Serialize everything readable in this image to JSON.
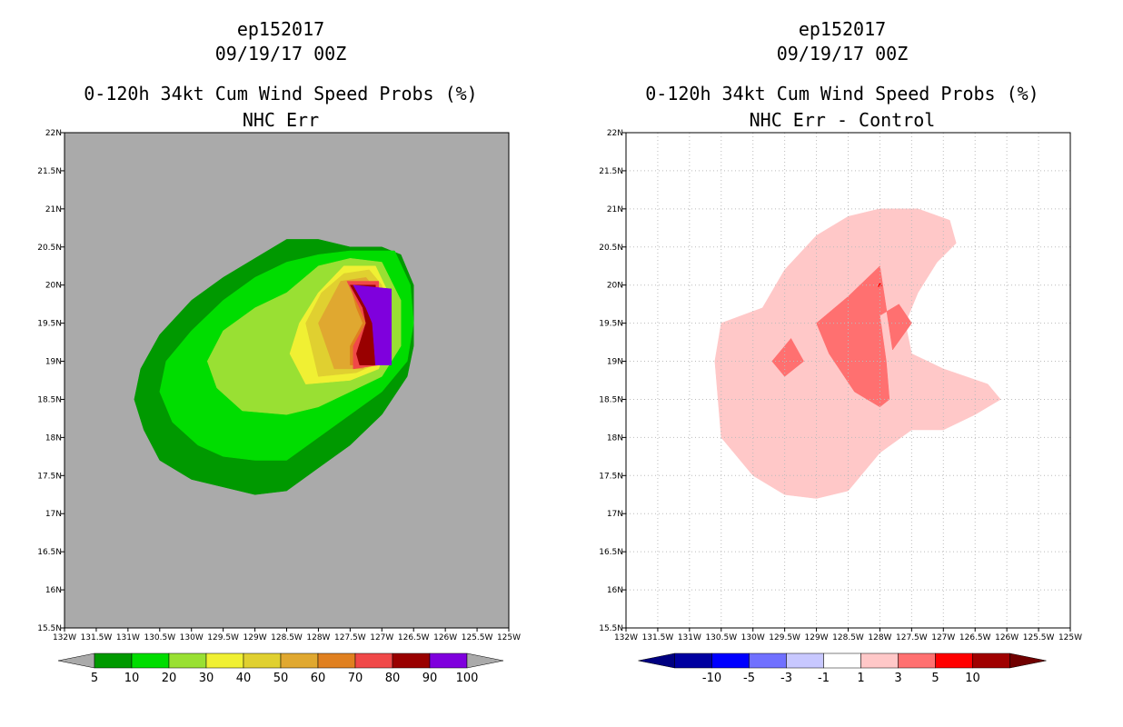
{
  "left": {
    "storm_id": "ep152017",
    "datetime": "09/19/17 00Z",
    "title": "0-120h 34kt Cum Wind Speed Probs (%)",
    "subtitle": "NHC Err",
    "colors": {
      "background": "#aaaaaa"
    }
  },
  "right": {
    "storm_id": "ep152017",
    "datetime": "09/19/17 00Z",
    "title": "0-120h 34kt Cum Wind Speed Probs (%)",
    "subtitle": "NHC Err - Control",
    "colors": {
      "background": "#ffffff",
      "grid": "#bbbbbb"
    }
  },
  "chart_data": [
    {
      "type": "heatmap",
      "title": "0-120h 34kt Cum Wind Speed Probs (%)",
      "subtitle": "NHC Err",
      "xlim": [
        -132,
        -125
      ],
      "ylim": [
        15.5,
        22
      ],
      "xticks": [
        -132,
        -131.5,
        -131,
        -130.5,
        -130,
        -129.5,
        -129,
        -128.5,
        -128,
        -127.5,
        -127,
        -126.5,
        -126,
        -125.5,
        -125
      ],
      "xtick_labels": [
        "132W",
        "131.5W",
        "131W",
        "130.5W",
        "130W",
        "129.5W",
        "129W",
        "128.5W",
        "128W",
        "127.5W",
        "127W",
        "126.5W",
        "126W",
        "125.5W",
        "125W"
      ],
      "yticks": [
        15.5,
        16,
        16.5,
        17,
        17.5,
        18,
        18.5,
        19,
        19.5,
        20,
        20.5,
        21,
        21.5,
        22
      ],
      "ytick_labels": [
        "15.5N",
        "16N",
        "16.5N",
        "17N",
        "17.5N",
        "18N",
        "18.5N",
        "19N",
        "19.5N",
        "20N",
        "20.5N",
        "21N",
        "21.5N",
        "22N"
      ],
      "grid": false,
      "colorbar": {
        "labels": [
          "5",
          "10",
          "20",
          "30",
          "40",
          "50",
          "60",
          "70",
          "80",
          "90",
          "100"
        ],
        "colors": [
          "#009900",
          "#00dd00",
          "#99e033",
          "#f0f033",
          "#e0d030",
          "#e0a830",
          "#e08020",
          "#f04848",
          "#990000",
          "#7f00dd"
        ],
        "under_color": "#aaaaaa",
        "over_color": "#aaaaaa"
      },
      "contours": [
        {
          "level": 5,
          "color": "#009900",
          "points": [
            [
              -129,
              17.25
            ],
            [
              -128.5,
              17.3
            ],
            [
              -128,
              17.6
            ],
            [
              -127.5,
              17.9
            ],
            [
              -127,
              18.3
            ],
            [
              -126.6,
              18.8
            ],
            [
              -126.5,
              19.2
            ],
            [
              -126.5,
              20
            ],
            [
              -126.7,
              20.4
            ],
            [
              -127,
              20.5
            ],
            [
              -127.5,
              20.5
            ],
            [
              -128,
              20.6
            ],
            [
              -128.5,
              20.6
            ],
            [
              -129,
              20.35
            ],
            [
              -129.5,
              20.1
            ],
            [
              -130,
              19.8
            ],
            [
              -130.5,
              19.35
            ],
            [
              -130.8,
              18.9
            ],
            [
              -130.9,
              18.5
            ],
            [
              -130.75,
              18.1
            ],
            [
              -130.5,
              17.7
            ],
            [
              -130,
              17.45
            ],
            [
              -129.5,
              17.35
            ]
          ]
        },
        {
          "level": 10,
          "color": "#00dd00",
          "points": [
            [
              -129,
              17.7
            ],
            [
              -128.5,
              17.7
            ],
            [
              -128,
              18
            ],
            [
              -127.5,
              18.3
            ],
            [
              -127,
              18.6
            ],
            [
              -126.6,
              19
            ],
            [
              -126.5,
              19.5
            ],
            [
              -126.55,
              20
            ],
            [
              -126.8,
              20.45
            ],
            [
              -127.5,
              20.45
            ],
            [
              -128,
              20.4
            ],
            [
              -128.5,
              20.3
            ],
            [
              -129,
              20.1
            ],
            [
              -129.5,
              19.8
            ],
            [
              -130,
              19.4
            ],
            [
              -130.4,
              19
            ],
            [
              -130.5,
              18.6
            ],
            [
              -130.3,
              18.2
            ],
            [
              -129.9,
              17.9
            ],
            [
              -129.5,
              17.75
            ]
          ]
        },
        {
          "level": 20,
          "color": "#99e033",
          "points": [
            [
              -128.5,
              18.3
            ],
            [
              -128,
              18.4
            ],
            [
              -127.5,
              18.6
            ],
            [
              -127,
              18.8
            ],
            [
              -126.7,
              19.2
            ],
            [
              -126.7,
              19.8
            ],
            [
              -127,
              20.3
            ],
            [
              -127.5,
              20.35
            ],
            [
              -128,
              20.25
            ],
            [
              -128.5,
              19.9
            ],
            [
              -129,
              19.7
            ],
            [
              -129.5,
              19.4
            ],
            [
              -129.75,
              19
            ],
            [
              -129.6,
              18.65
            ],
            [
              -129.2,
              18.35
            ]
          ]
        },
        {
          "level": 30,
          "color": "#f0f033",
          "points": [
            [
              -128.2,
              18.7
            ],
            [
              -127.5,
              18.75
            ],
            [
              -127.05,
              18.9
            ],
            [
              -126.9,
              19.3
            ],
            [
              -126.9,
              19.9
            ],
            [
              -127.1,
              20.25
            ],
            [
              -127.6,
              20.25
            ],
            [
              -128,
              19.9
            ],
            [
              -128.3,
              19.5
            ],
            [
              -128.45,
              19.1
            ]
          ]
        },
        {
          "level": 40,
          "color": "#e0d030",
          "points": [
            [
              -128,
              18.8
            ],
            [
              -127.4,
              18.85
            ],
            [
              -127,
              19
            ],
            [
              -126.95,
              19.5
            ],
            [
              -127,
              20
            ],
            [
              -127.2,
              20.2
            ],
            [
              -127.6,
              20.15
            ],
            [
              -127.95,
              19.9
            ],
            [
              -128.2,
              19.5
            ]
          ]
        },
        {
          "level": 50,
          "color": "#e0a830",
          "points": [
            [
              -127.75,
              18.9
            ],
            [
              -127.3,
              18.9
            ],
            [
              -127.05,
              19.1
            ],
            [
              -127.05,
              19.9
            ],
            [
              -127.25,
              20.1
            ],
            [
              -127.65,
              20.05
            ],
            [
              -128,
              19.5
            ]
          ]
        },
        {
          "level": 60,
          "color": "#e08020",
          "points": [
            [
              -127.5,
              18.95
            ],
            [
              -127.1,
              18.95
            ],
            [
              -127.1,
              20.05
            ],
            [
              -127.5,
              20
            ],
            [
              -127.4,
              19.7
            ],
            [
              -127.3,
              19.5
            ],
            [
              -127.5,
              19.2
            ]
          ]
        },
        {
          "level": 70,
          "color": "#f04848",
          "points": [
            [
              -127.45,
              18.9
            ],
            [
              -127.05,
              18.95
            ],
            [
              -127.05,
              20.05
            ],
            [
              -127.55,
              20.05
            ],
            [
              -127.35,
              19.7
            ],
            [
              -127.25,
              19.5
            ],
            [
              -127.45,
              19.2
            ]
          ]
        },
        {
          "level": 80,
          "color": "#990000",
          "points": [
            [
              -127.35,
              18.95
            ],
            [
              -127.1,
              18.95
            ],
            [
              -127.1,
              20
            ],
            [
              -127.5,
              20
            ],
            [
              -127.3,
              19.7
            ],
            [
              -127.25,
              19.5
            ],
            [
              -127.4,
              19.1
            ]
          ]
        },
        {
          "level": 90,
          "color": "#7f00dd",
          "points": [
            [
              -127.1,
              18.95
            ],
            [
              -126.85,
              18.95
            ],
            [
              -126.85,
              19.95
            ],
            [
              -127.45,
              20
            ],
            [
              -127.25,
              19.7
            ],
            [
              -127.15,
              19.5
            ]
          ]
        }
      ]
    },
    {
      "type": "heatmap",
      "title": "0-120h 34kt Cum Wind Speed Probs (%)",
      "subtitle": "NHC Err - Control",
      "xlim": [
        -132,
        -125
      ],
      "ylim": [
        15.5,
        22
      ],
      "xticks": [
        -132,
        -131.5,
        -131,
        -130.5,
        -130,
        -129.5,
        -129,
        -128.5,
        -128,
        -127.5,
        -127,
        -126.5,
        -126,
        -125.5,
        -125
      ],
      "xtick_labels": [
        "132W",
        "131.5W",
        "131W",
        "130.5W",
        "130W",
        "129.5W",
        "129W",
        "128.5W",
        "128W",
        "127.5W",
        "127W",
        "126.5W",
        "126W",
        "125.5W",
        "125W"
      ],
      "yticks": [
        15.5,
        16,
        16.5,
        17,
        17.5,
        18,
        18.5,
        19,
        19.5,
        20,
        20.5,
        21,
        21.5,
        22
      ],
      "ytick_labels": [
        "15.5N",
        "16N",
        "16.5N",
        "17N",
        "17.5N",
        "18N",
        "18.5N",
        "19N",
        "19.5N",
        "20N",
        "20.5N",
        "21N",
        "21.5N",
        "22N"
      ],
      "grid": true,
      "colorbar": {
        "labels": [
          "-10",
          "-5",
          "-3",
          "-1",
          "1",
          "3",
          "5",
          "10"
        ],
        "colors": [
          "#0000a0",
          "#0000ff",
          "#7070ff",
          "#c8c8ff",
          "#ffffff",
          "#ffc8c8",
          "#ff7070",
          "#ff0000",
          "#a00000"
        ],
        "under_color": "#000080",
        "over_color": "#700000"
      },
      "contours": [
        {
          "level": 1,
          "color": "#ffc8c8",
          "points": [
            [
              -130.5,
              18
            ],
            [
              -130,
              17.5
            ],
            [
              -129.5,
              17.25
            ],
            [
              -129,
              17.2
            ],
            [
              -128.5,
              17.3
            ],
            [
              -128,
              17.8
            ],
            [
              -127.5,
              18.1
            ],
            [
              -127,
              18.1
            ],
            [
              -126.5,
              18.3
            ],
            [
              -126.1,
              18.5
            ],
            [
              -126.3,
              18.7
            ],
            [
              -127,
              18.9
            ],
            [
              -127.5,
              19.1
            ],
            [
              -127.6,
              19.5
            ],
            [
              -127.4,
              19.9
            ],
            [
              -127.1,
              20.3
            ],
            [
              -126.8,
              20.55
            ],
            [
              -126.9,
              20.85
            ],
            [
              -127.4,
              21
            ],
            [
              -128,
              21
            ],
            [
              -128.5,
              20.9
            ],
            [
              -129,
              20.65
            ],
            [
              -129.5,
              20.2
            ],
            [
              -129.85,
              19.7
            ],
            [
              -130.5,
              19.5
            ],
            [
              -130.6,
              19
            ],
            [
              -130.55,
              18.5
            ]
          ]
        },
        {
          "level": 3,
          "color": "#ff7070",
          "points": [
            [
              -128,
              18.4
            ],
            [
              -127.85,
              18.5
            ],
            [
              -127.9,
              19
            ],
            [
              -127.95,
              19.3
            ],
            [
              -128,
              19.6
            ],
            [
              -127.7,
              19.75
            ],
            [
              -127.5,
              19.5
            ],
            [
              -127.8,
              19.15
            ],
            [
              -128,
              20.25
            ],
            [
              -128.5,
              19.85
            ],
            [
              -129,
              19.5
            ],
            [
              -128.8,
              19.1
            ],
            [
              -128.4,
              18.6
            ]
          ]
        },
        {
          "level": 3,
          "color": "#ff7070",
          "points": [
            [
              -129.5,
              18.8
            ],
            [
              -129.2,
              19
            ],
            [
              -129.4,
              19.3
            ],
            [
              -129.7,
              19.0
            ]
          ]
        },
        {
          "level": 5,
          "color": "#ff0000",
          "points": [
            [
              -128.03,
              19.98
            ],
            [
              -127.97,
              19.99
            ],
            [
              -128.0,
              20.03
            ]
          ]
        }
      ]
    }
  ]
}
